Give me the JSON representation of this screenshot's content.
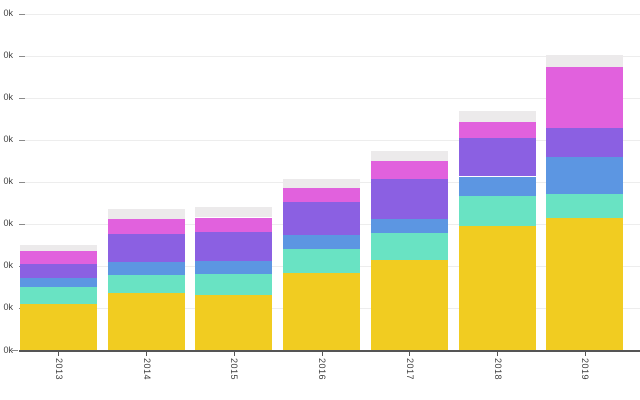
{
  "chart": {
    "background": "#ffffff",
    "axis_color": "#555555",
    "grid_color": "#ededed",
    "y_tick_color": "#8a8a8a",
    "label_color": "#3f3f3f"
  },
  "chart_data": {
    "type": "bar",
    "stacked": true,
    "title": "",
    "xlabel": "",
    "ylabel": "",
    "categories": [
      "2013",
      "2014",
      "2015",
      "2016",
      "2017",
      "2018",
      "2019"
    ],
    "series": [
      {
        "name": "yellow",
        "color": "#F1CC21",
        "values": [
          22000,
          27000,
          26000,
          36500,
          43000,
          59000,
          63000
        ]
      },
      {
        "name": "teal",
        "color": "#69E3C3",
        "values": [
          8000,
          8500,
          10000,
          11500,
          12500,
          14000,
          11000
        ]
      },
      {
        "name": "blue",
        "color": "#5C96E2",
        "values": [
          4000,
          6500,
          6500,
          6500,
          7000,
          9500,
          18000
        ]
      },
      {
        "name": "purple",
        "color": "#8B60E2",
        "values": [
          7000,
          13000,
          13500,
          16000,
          19000,
          18500,
          13500
        ]
      },
      {
        "name": "magenta",
        "color": "#E161DD",
        "values": [
          6000,
          7500,
          7000,
          6500,
          8500,
          7500,
          29000
        ]
      },
      {
        "name": "light-gray",
        "color": "#ECEAEB",
        "values": [
          3000,
          4500,
          5000,
          4500,
          4500,
          5000,
          6000
        ]
      }
    ],
    "totals": [
      50000,
      67000,
      68000,
      81500,
      94500,
      113500,
      140500
    ],
    "y_axis": {
      "min": 0,
      "max": 160000,
      "tick_step": 20000,
      "tick_labels_visible": [
        "0k",
        "0k",
        "0k",
        "0k",
        "0k",
        "0k",
        "0k",
        "0k",
        "0k"
      ]
    },
    "x_axis": {
      "label_rotation_deg": 90
    },
    "legend": "none",
    "grid": true
  }
}
